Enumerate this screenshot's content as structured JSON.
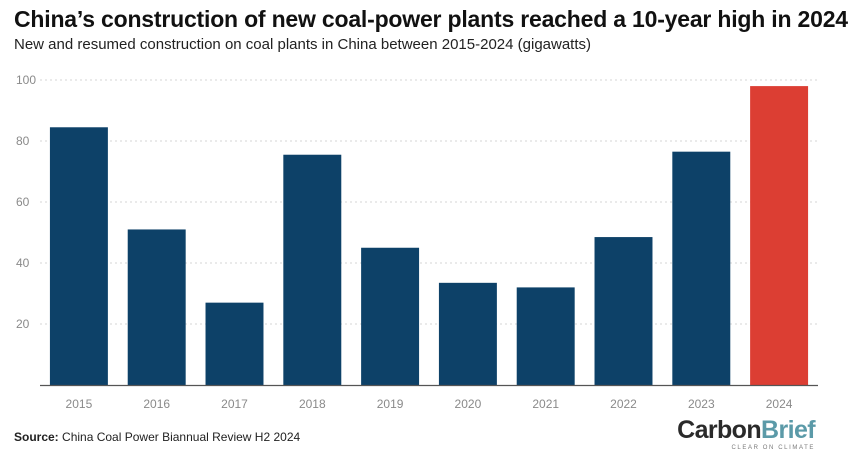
{
  "title": "China’s construction of new coal-power plants reached a 10-year high in 2024",
  "subtitle": "New and resumed construction on coal plants in China between 2015-2024 (gigawatts)",
  "source": {
    "label": "Source:",
    "text": "China Coal Power Biannual Review H2 2024"
  },
  "brand": {
    "part1": "Carbon",
    "part2": "Brief",
    "tagline": "CLEAR ON CLIMATE"
  },
  "colors": {
    "bar": "#0d4168",
    "highlight": "#dc3e33",
    "grid": "#d6d6d6",
    "axis": "#555555"
  },
  "chart_data": {
    "type": "bar",
    "categories": [
      "2015",
      "2016",
      "2017",
      "2018",
      "2019",
      "2020",
      "2021",
      "2022",
      "2023",
      "2024"
    ],
    "values": [
      84.5,
      51,
      27,
      75.5,
      45,
      33.5,
      32,
      48.5,
      76.5,
      98
    ],
    "highlight": [
      "2024"
    ],
    "ylim": [
      0,
      100
    ],
    "yticks": [
      20,
      40,
      60,
      80,
      100
    ],
    "xlabel": "",
    "ylabel": "",
    "grid": true,
    "legend": "none"
  }
}
